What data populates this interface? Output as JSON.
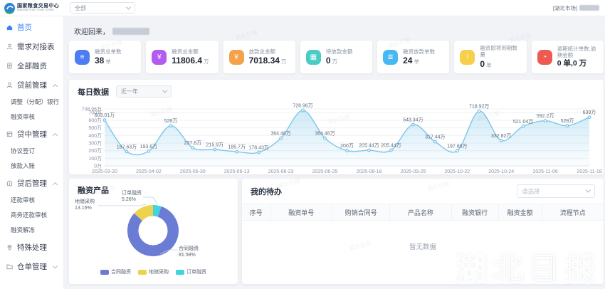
{
  "header": {
    "brand_cn": "国家粮食交易中心",
    "brand_en": "National Grain Trade Center",
    "market_filter": "全部",
    "market_tag": "[湖北市场]"
  },
  "sidebar": {
    "items": [
      {
        "label": "首页",
        "icon": "home",
        "active": true
      },
      {
        "label": "需求对接表",
        "icon": "user"
      },
      {
        "label": "全部融资",
        "icon": "document"
      },
      {
        "label": "贷前管理",
        "icon": "user",
        "expanded": true,
        "children": [
          "调整（分配）银行",
          "融资审核"
        ]
      },
      {
        "label": "贷中管理",
        "icon": "layers",
        "expanded": true,
        "children": [
          "协议签订",
          "放款入账"
        ]
      },
      {
        "label": "贷后管理",
        "icon": "bank",
        "expanded": true,
        "children": [
          "还款审核",
          "商务还款审核",
          "融资解冻"
        ]
      },
      {
        "label": "特殊处理",
        "icon": "pin"
      },
      {
        "label": "仓单管理",
        "icon": "folder",
        "expanded": false,
        "children": []
      }
    ]
  },
  "welcome": {
    "prefix": "欢迎回来，"
  },
  "stats": [
    {
      "label": "融资总单数",
      "value": "38",
      "unit": "单",
      "color": "#4d7df2",
      "icon": "document-icon",
      "icon_glyph": "≡"
    },
    {
      "label": "融资总金额",
      "value": "11806.4",
      "unit": "万",
      "color": "#b35bef",
      "icon": "money-icon",
      "icon_glyph": "¥"
    },
    {
      "label": "放款总金额",
      "value": "7018.34",
      "unit": "万",
      "color": "#f5a04a",
      "icon": "coin-icon",
      "icon_glyph": "¥"
    },
    {
      "label": "待放款金额",
      "value": "0",
      "unit": "万",
      "color": "#49ccc4",
      "icon": "pending-icon",
      "icon_glyph": "▦"
    },
    {
      "label": "融资放款单数",
      "value": "24",
      "unit": "单",
      "color": "#46b8f2",
      "icon": "disbursed-icon",
      "icon_glyph": "≣"
    },
    {
      "label": "融资即将到期数量",
      "value": "0",
      "unit": "单",
      "color": "#f6cf4b",
      "icon": "due-soon-icon",
      "icon_glyph": "!"
    },
    {
      "label": "逾期统计单数,逾期金额",
      "value": "0 单,0 万",
      "unit": "",
      "color": "#ee5a52",
      "icon": "overdue-clock-icon",
      "icon_glyph": "◔"
    }
  ],
  "chart_data": [
    {
      "type": "area",
      "title": "每日数据",
      "range_label": "近一年",
      "values": [
        603.01,
        187.63,
        193.6,
        528,
        237.6,
        215.9,
        185.7,
        178.43,
        364.48,
        728.96,
        364.48,
        200,
        205.44,
        205.44,
        543.34,
        317.44,
        197.88,
        718.92,
        332.82,
        521.04,
        592.2,
        528,
        639
      ],
      "point_labels": [
        "603.01万",
        "187.63万",
        "193.6万",
        "528万",
        "237.6万",
        "215.9万",
        "185.7万",
        "178.43万",
        "364.48万",
        "728.96万",
        "364.48万",
        "200万",
        "205.44万",
        "205.44万",
        "543.34万",
        "317.44万",
        "197.88万",
        "718.92万",
        "332.82万",
        "521.04万",
        "592.2万",
        "528万",
        "639万"
      ],
      "x_tick_labels": [
        "2025-03-20",
        "2025-04-02",
        "2025-05-30",
        "2025-06-13",
        "2025-06-23",
        "2025-06-25",
        "2025-08-18",
        "2025-09-25",
        "2025-10-22",
        "2025-10-24",
        "2025-11-06",
        "2025-11-18"
      ],
      "x_tick_every": 2,
      "y_ticks": [
        0,
        100,
        200,
        300,
        400,
        500,
        600,
        700,
        748.96
      ],
      "y_tick_labels": [
        "0万",
        "100万",
        "200万",
        "300万",
        "400万",
        "500万",
        "600万",
        "700万",
        "748.96万"
      ],
      "ymax": 748.96,
      "unit": "万",
      "grid": true,
      "line_color": "#7dc6e8",
      "area_color": "#9fd4ee"
    },
    {
      "type": "pie",
      "title": "融资产品",
      "legend_position": "bottom",
      "slices": [
        {
          "label": "合同融资",
          "value_pct": 81.58,
          "pct_label": "81.58%",
          "color": "#6b7cd4"
        },
        {
          "label": "地储采购",
          "value_pct": 13.16,
          "pct_label": "13.16%",
          "color": "#edd24e"
        },
        {
          "label": "订单融资",
          "value_pct": 5.26,
          "pct_label": "5.26%",
          "color": "#3fd4e0"
        }
      ]
    }
  ],
  "todo": {
    "title": "我的待办",
    "filter_placeholder": "请选择",
    "columns": [
      "序号",
      "融资单号",
      "购销合同号",
      "产品名称",
      "融资银行",
      "融资金额",
      "流程节点"
    ],
    "rows": [],
    "empty_text": "暂无数据"
  },
  "watermark": {
    "text": "湖北日报"
  }
}
